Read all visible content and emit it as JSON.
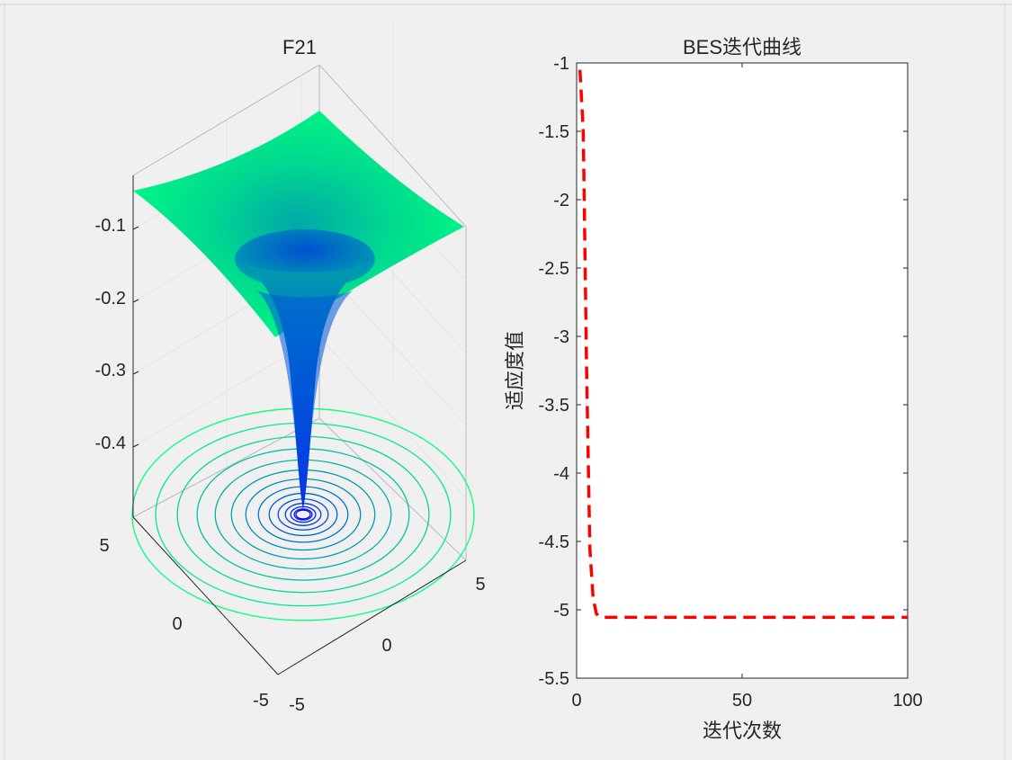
{
  "window": {
    "background": "#f0f0f0",
    "frame_color": "#cfcfcf"
  },
  "surface_plot": {
    "title": "F21",
    "z_ticks": [
      "-0.1",
      "-0.2",
      "-0.3",
      "-0.4"
    ],
    "x_ticks": [
      "-5",
      "0",
      "5"
    ],
    "y_ticks": [
      "-5",
      "0",
      "5"
    ],
    "colormap": [
      "#0000ff",
      "#0080c0",
      "#00ff80"
    ],
    "contour_levels": 14
  },
  "chart_data": [
    {
      "type": "surface",
      "title": "F21",
      "x_range": [
        -5,
        5
      ],
      "y_range": [
        -5,
        5
      ],
      "z_ticks": [
        -0.1,
        -0.2,
        -0.3,
        -0.4
      ],
      "z_min": -0.47,
      "z_max": -0.05,
      "colormap": "winter",
      "contours_at_base": true
    },
    {
      "type": "line",
      "title": "BES迭代曲线",
      "xlabel": "迭代次数",
      "ylabel": "适应度值",
      "xlim": [
        0,
        100
      ],
      "ylim": [
        -5.5,
        -1
      ],
      "x_ticks": [
        "0",
        "50",
        "100"
      ],
      "y_ticks": [
        "-1",
        "-1.5",
        "-2",
        "-2.5",
        "-3",
        "-3.5",
        "-4",
        "-4.5",
        "-5",
        "-5.5"
      ],
      "series": [
        {
          "color": "#ff0000",
          "style": "dashed",
          "x": [
            1,
            2,
            3,
            4,
            5,
            6,
            7,
            8,
            9,
            10,
            15,
            20,
            30,
            40,
            50,
            60,
            70,
            80,
            90,
            100
          ],
          "values": [
            -1.05,
            -1.5,
            -3.2,
            -4.55,
            -4.92,
            -5.03,
            -5.05,
            -5.055,
            -5.055,
            -5.055,
            -5.055,
            -5.055,
            -5.055,
            -5.055,
            -5.055,
            -5.055,
            -5.055,
            -5.055,
            -5.055,
            -5.055
          ]
        }
      ]
    }
  ]
}
